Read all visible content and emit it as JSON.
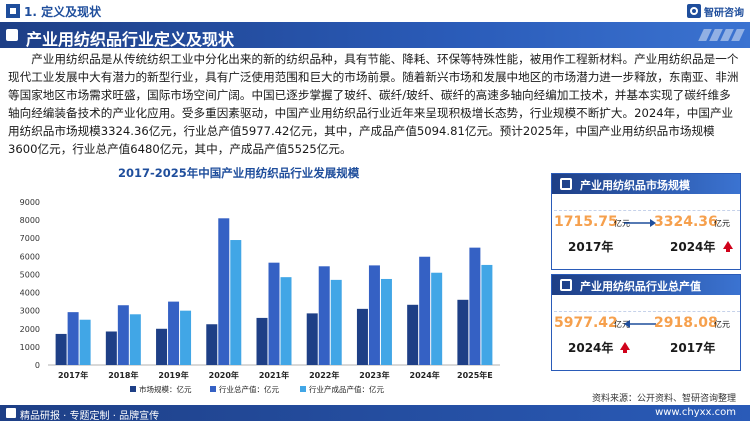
{
  "topbar": {
    "section_title": "1. 定义及现状",
    "logo_text": "智研咨询"
  },
  "header": {
    "title": "产业用纺织品行业定义及现状"
  },
  "paragraph": "产业用纺织品是从传统纺织工业中分化出来的新的纺织品种，具有节能、降耗、环保等特殊性能，被用作工程新材料。产业用纺织品是一个现代工业发展中大有潜力的新型行业，具有广泛使用范围和巨大的市场前景。随着新兴市场和发展中地区的市场潜力进一步释放，东南亚、非洲等国家地区市场需求旺盛，国际市场空间广阔。中国已逐步掌握了玻纤、碳纤/玻纤、碳纤的高速多轴向经编加工技术，并基本实现了碳纤维多轴向经编装备技术的产业化应用。受多重因素驱动，中国产业用纺织品行业近年来呈现积极增长态势，行业规模不断扩大。2024年，中国产业用纺织品市场规模3324.36亿元，行业总产值5977.42亿元，其中，产成品产值5094.81亿元。预计2025年，中国产业用纺织品市场规模3600亿元，行业总产值6480亿元，其中，产成品产值5525亿元。",
  "chart_data": {
    "type": "bar",
    "title": "2017-2025年中国产业用纺织品行业发展规模",
    "categories": [
      "2017年",
      "2018年",
      "2019年",
      "2020年",
      "2021年",
      "2022年",
      "2023年",
      "2024年",
      "2025年E"
    ],
    "ylim": [
      0,
      9000
    ],
    "yticks": [
      0,
      1000,
      2000,
      3000,
      4000,
      5000,
      6000,
      7000,
      8000,
      9000
    ],
    "legend_position": "bottom",
    "grid": false,
    "series": [
      {
        "name": "市场规模：亿元",
        "color": "#1e3f86",
        "values": [
          1715.75,
          1850,
          2000,
          2250,
          2600,
          2850,
          3100,
          3324.36,
          3600
        ]
      },
      {
        "name": "行业总产值：亿元",
        "color": "#3561c4",
        "values": [
          2918.08,
          3300,
          3500,
          8100,
          5650,
          5450,
          5500,
          5977.42,
          6480
        ]
      },
      {
        "name": "行业产成品产值：亿元",
        "color": "#41a6e6",
        "values": [
          2500,
          2800,
          3000,
          6900,
          4850,
          4700,
          4750,
          5094.81,
          5525
        ]
      }
    ]
  },
  "cards": [
    {
      "title": "产业用纺织品市场规模",
      "left_value": "1715.75",
      "left_unit": "亿元",
      "left_year": "2017年",
      "right_value": "3324.36",
      "right_unit": "亿元",
      "right_year": "2024年"
    },
    {
      "title": "产业用纺织品行业总产值",
      "left_value": "5977.42",
      "left_unit": "亿元",
      "left_year": "2024年",
      "right_value": "2918.08",
      "right_unit": "亿元",
      "right_year": "2017年"
    }
  ],
  "source": "资料来源：公开资料、智研咨询整理",
  "footer": {
    "left": "精品研报 · 专题定制 · 品牌宣传",
    "right": "www.chyxx.com"
  },
  "colors": {
    "brand_blue": "#1f4e9c",
    "accent_orange": "#f6a04d",
    "up_red": "#d0021b"
  }
}
